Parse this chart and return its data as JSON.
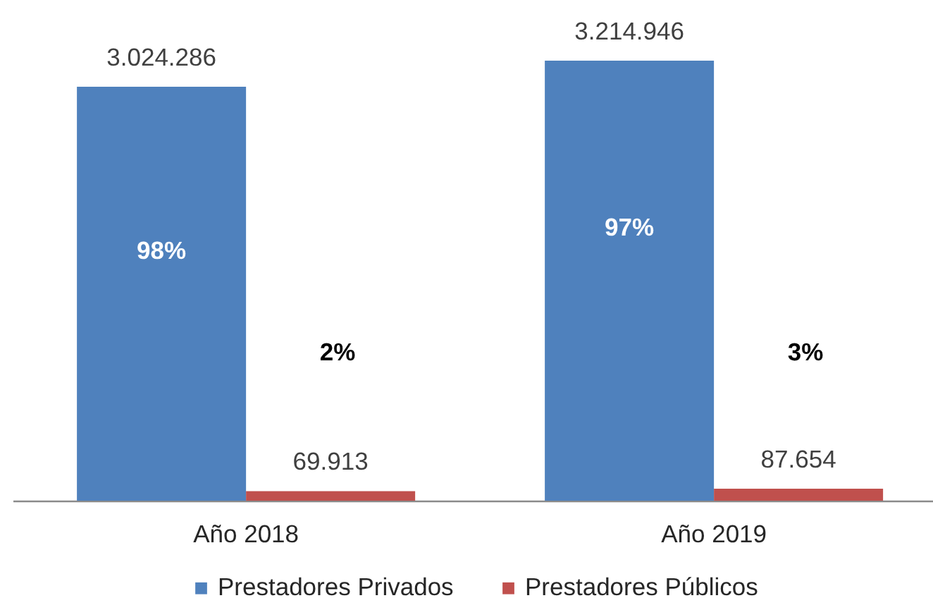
{
  "chart_data": {
    "type": "bar",
    "categories": [
      "Año 2018",
      "Año 2019"
    ],
    "series": [
      {
        "name": "Prestadores Privados",
        "color": "#4f81bd",
        "values": [
          3024286,
          3214946
        ],
        "value_labels": [
          "3.024.286",
          "3.214.946"
        ]
      },
      {
        "name": "Prestadores Públicos",
        "color": "#c0504d",
        "values": [
          69913,
          87654
        ],
        "value_labels": [
          "69.913",
          "87.654"
        ]
      }
    ],
    "tick_labels": "x",
    "legend": "bottom",
    "annotations": [
      {
        "text": "98%",
        "x": "Año 2018",
        "y": 1820000
      },
      "2%",
      {
        "text": "97%",
        "x": "Año 2019",
        "y": 1990000
      },
      "3%"
    ]
  }
}
